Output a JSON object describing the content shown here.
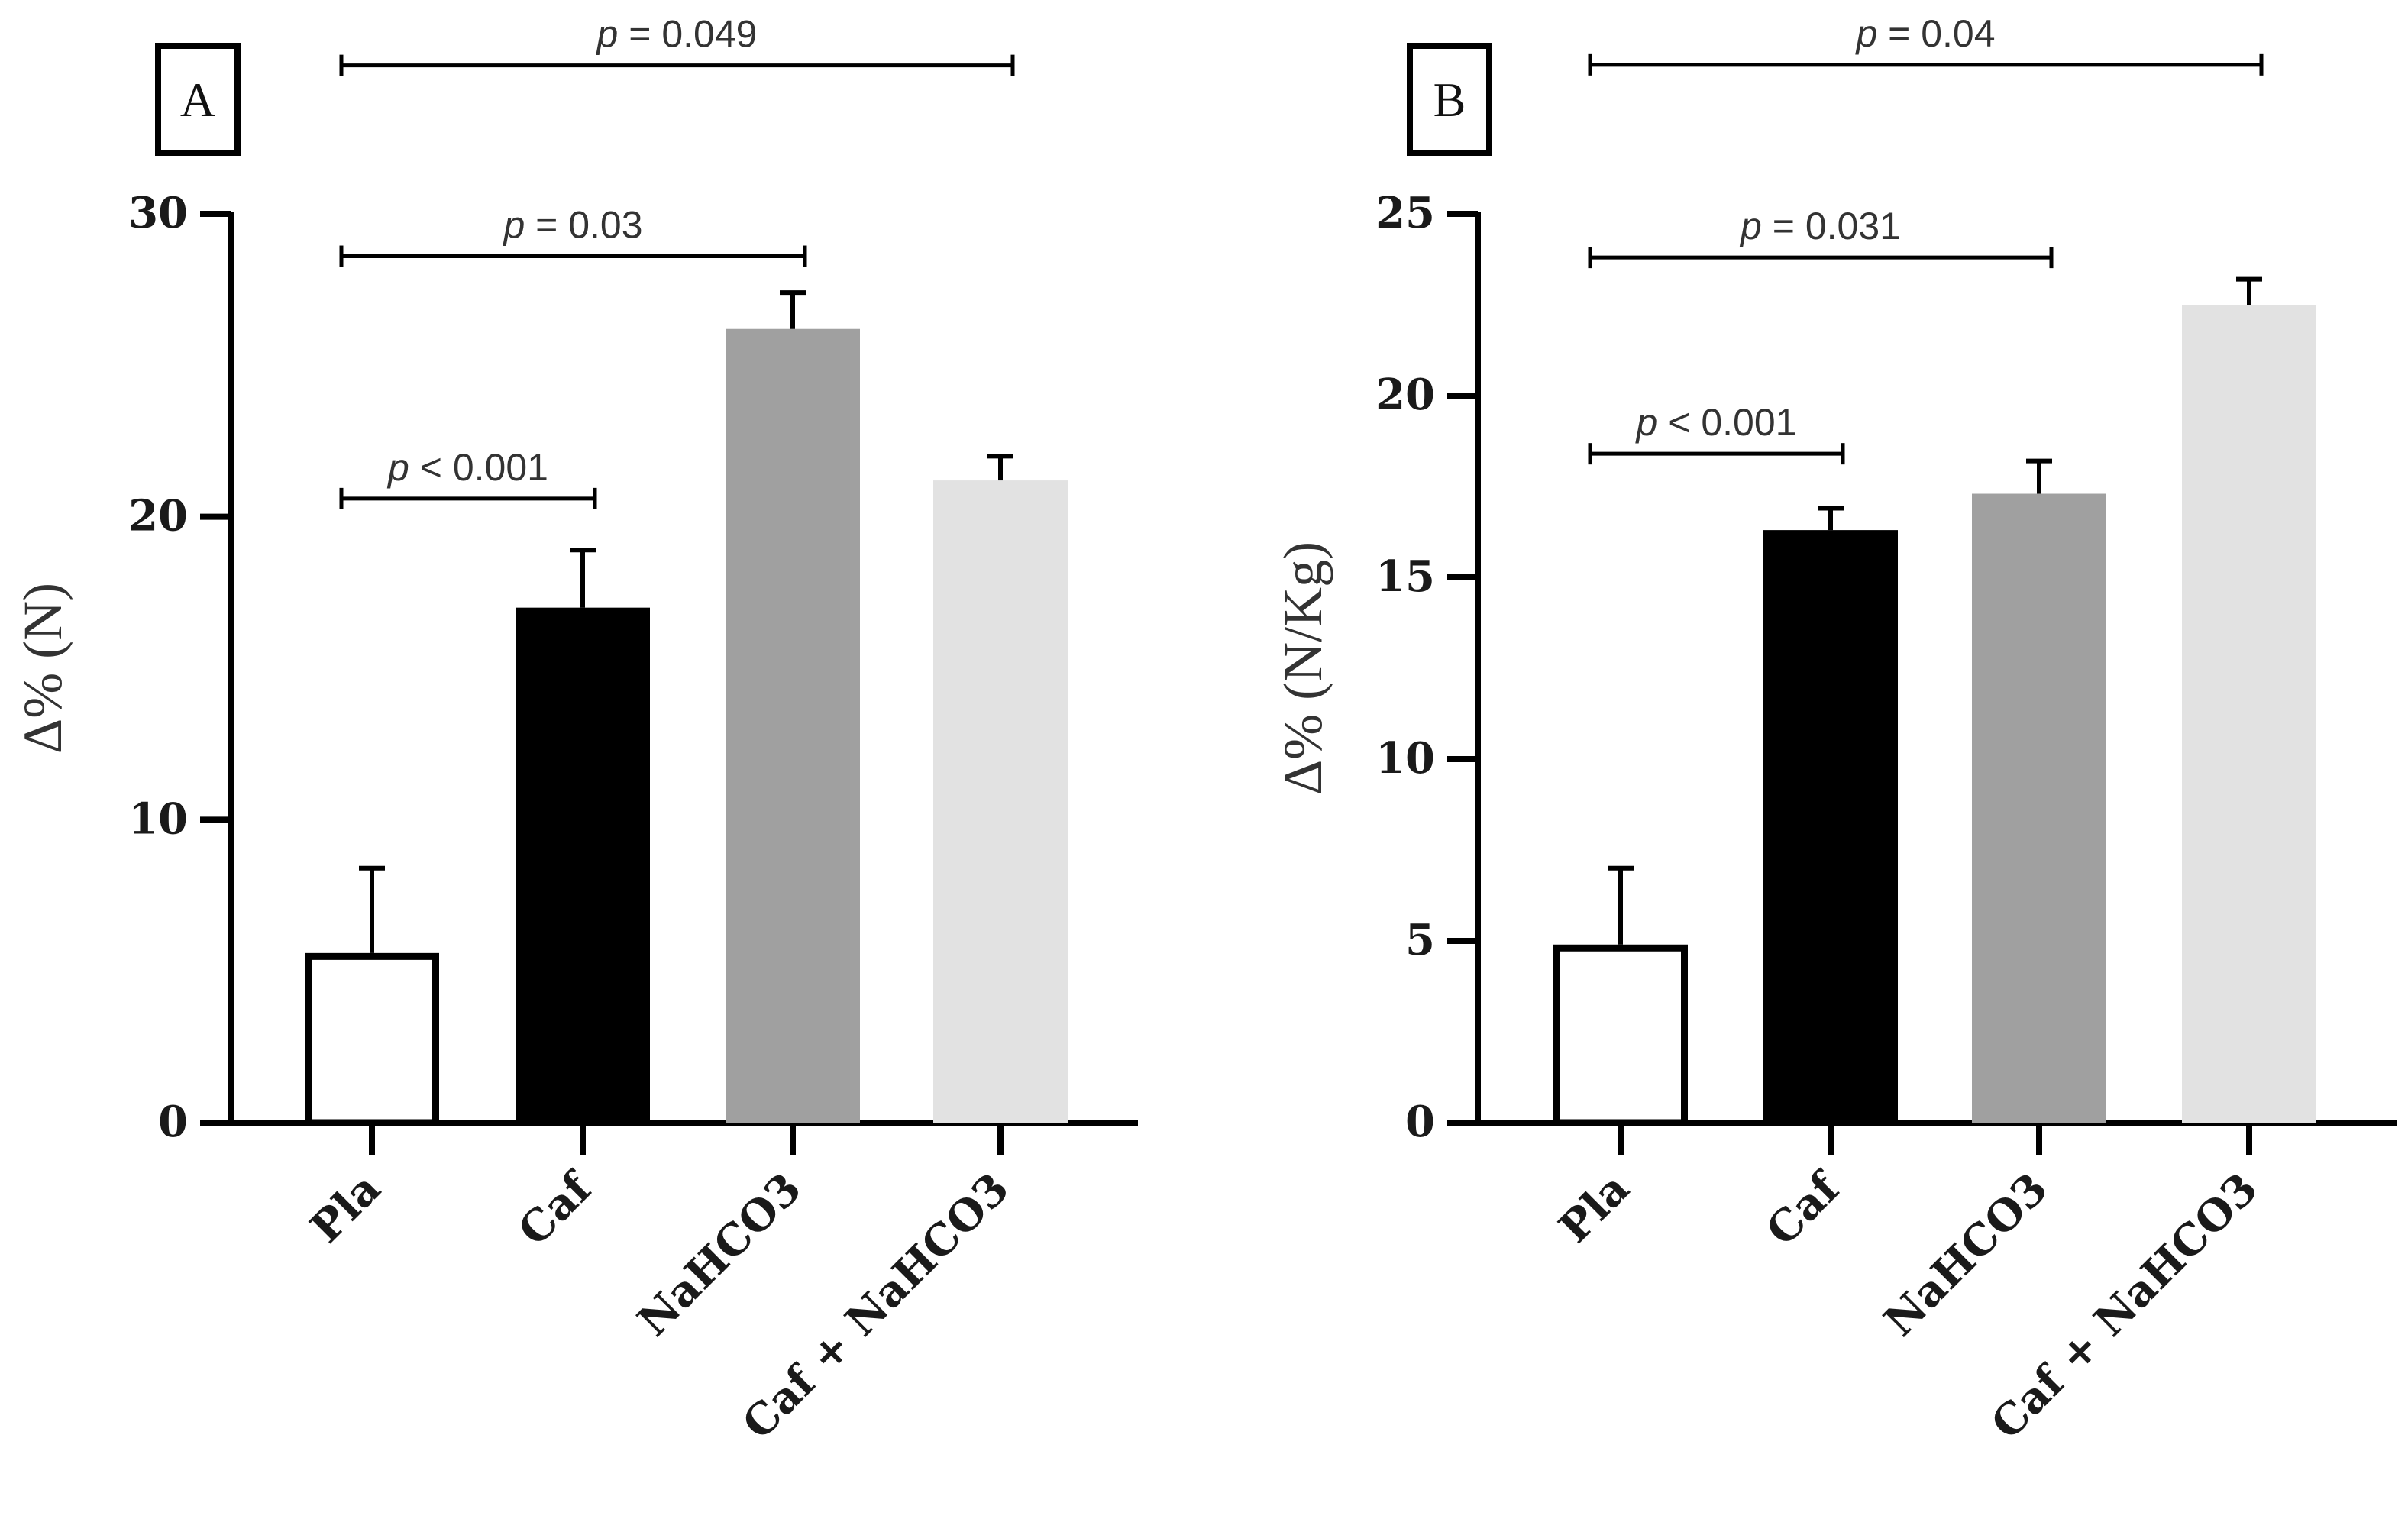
{
  "chart_data": [
    {
      "type": "bar",
      "panel_label": "A",
      "ylabel": "Δ% (N)",
      "categories": [
        "Pla",
        "Caf",
        "NaHCO3",
        "Caf + NaHCO3"
      ],
      "values": [
        5.6,
        17.0,
        26.2,
        21.2
      ],
      "errors": [
        2.8,
        1.9,
        1.2,
        0.8
      ],
      "bar_colors": [
        "#ffffff",
        "#000000",
        "#a0a0a0",
        "#e2e2e2"
      ],
      "ylim": [
        0,
        30
      ],
      "yticks": [
        0,
        10,
        20,
        30
      ],
      "ytick_labels": [
        "0",
        "10",
        "20",
        "30"
      ],
      "comparisons": [
        {
          "from": 0,
          "to": 1,
          "p": "p",
          "rest": " < 0.001",
          "y": 20.6
        },
        {
          "from": 0,
          "to": 2,
          "p": "p",
          "rest": " = 0.03",
          "y": 28.6
        },
        {
          "from": 0,
          "to": 3,
          "p": "p",
          "rest": " = 0.049",
          "y": 34.9
        }
      ]
    },
    {
      "type": "bar",
      "panel_label": "B",
      "ylabel": "Δ% (N/Kg)",
      "categories": [
        "Pla",
        "Caf",
        "NaHCO3",
        "Caf + NaHCO3"
      ],
      "values": [
        4.9,
        16.3,
        17.3,
        22.5
      ],
      "errors": [
        2.1,
        0.6,
        0.9,
        0.7
      ],
      "bar_colors": [
        "#ffffff",
        "#000000",
        "#a0a0a0",
        "#e2e2e2"
      ],
      "ylim": [
        0,
        25
      ],
      "yticks": [
        0,
        5,
        10,
        15,
        20,
        25
      ],
      "ytick_labels": [
        "0",
        "5",
        "10",
        "15",
        "20",
        "25"
      ],
      "comparisons": [
        {
          "from": 0,
          "to": 1,
          "p": "p",
          "rest": " < 0.001",
          "y": 18.4
        },
        {
          "from": 0,
          "to": 2,
          "p": "p",
          "rest": " = 0.031",
          "y": 23.8
        },
        {
          "from": 0,
          "to": 3,
          "p": "p",
          "rest": " = 0.04",
          "y": 29.1
        }
      ]
    }
  ]
}
